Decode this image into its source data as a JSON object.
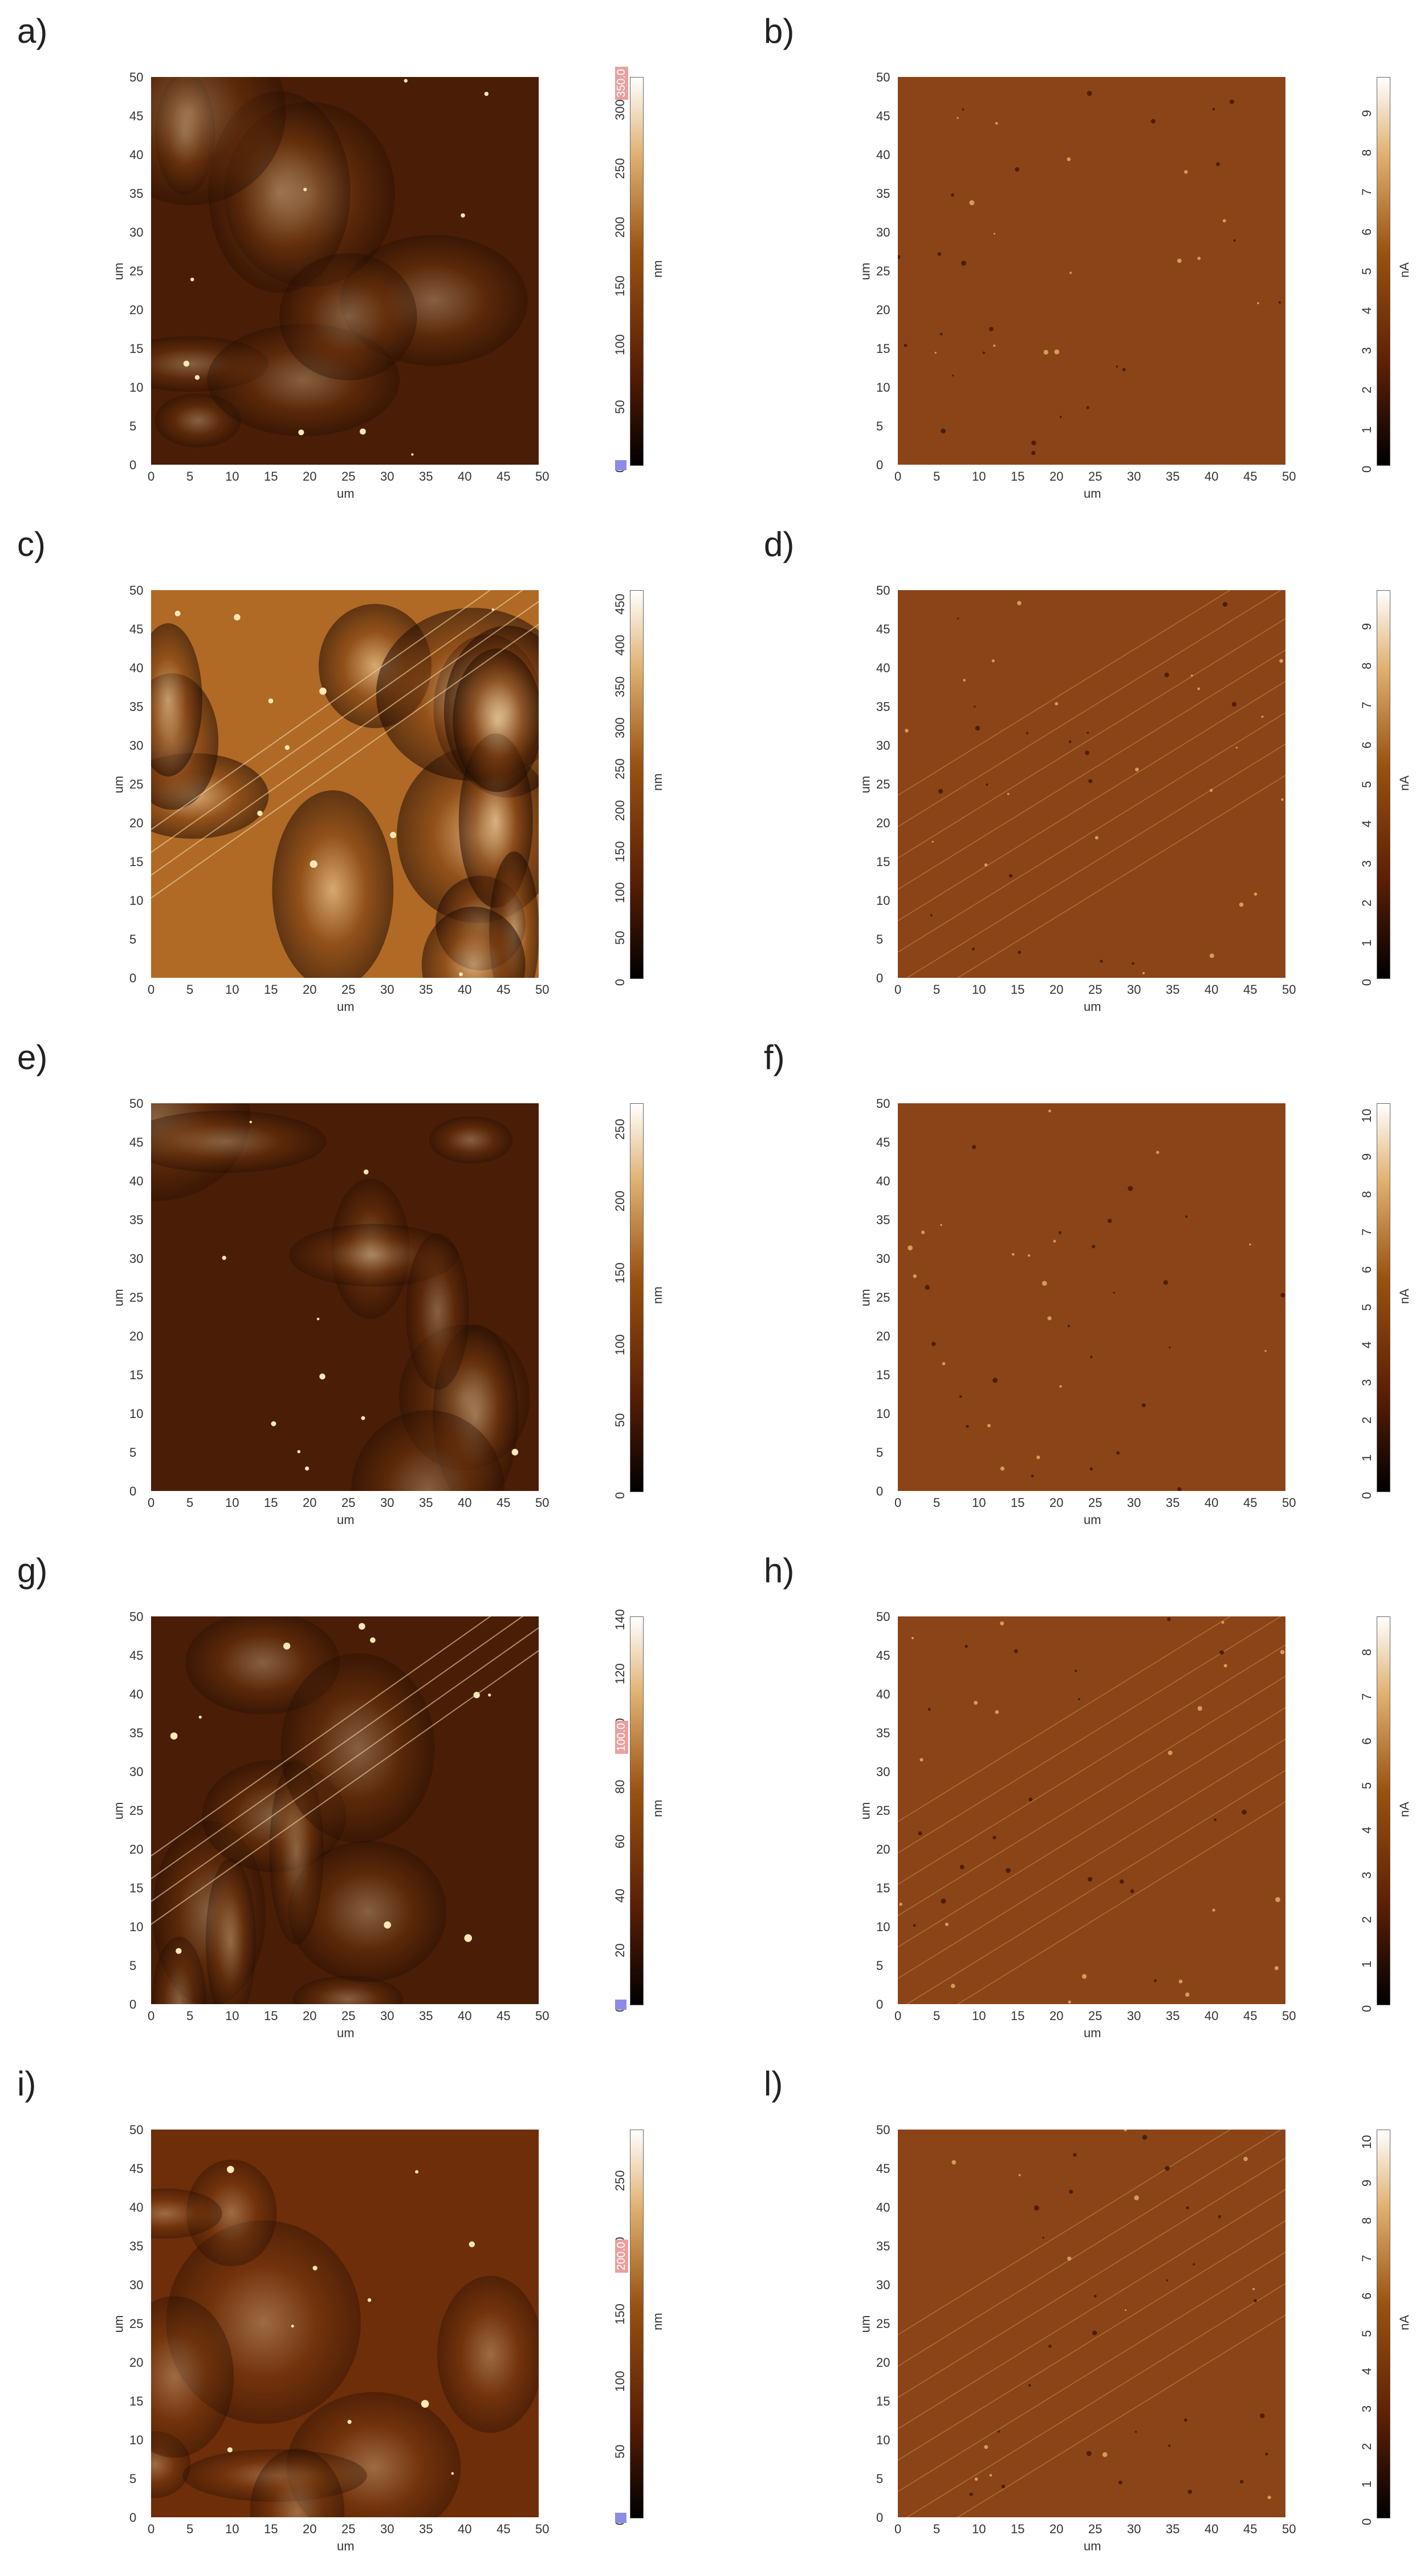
{
  "axis": {
    "ticks": [
      "0",
      "5",
      "10",
      "15",
      "20",
      "25",
      "30",
      "35",
      "40",
      "45",
      "50"
    ],
    "unit_label": "um"
  },
  "panels": [
    {
      "label": "a)",
      "kind": "height",
      "unit": "nm",
      "cbar_ticks": [
        "0",
        "50",
        "100",
        "150",
        "200",
        "250",
        "300"
      ],
      "cbar_max": 330,
      "cbar_hi_label": "350.0",
      "has_marker": true
    },
    {
      "label": "b)",
      "kind": "current",
      "unit": "nA",
      "cbar_ticks": [
        "0",
        "1",
        "2",
        "3",
        "4",
        "5",
        "6",
        "7",
        "8",
        "9"
      ],
      "cbar_max": 9.8,
      "has_marker": false
    },
    {
      "label": "c)",
      "kind": "height",
      "unit": "nm",
      "cbar_ticks": [
        "0",
        "50",
        "100",
        "150",
        "200",
        "250",
        "300",
        "350",
        "400",
        "450"
      ],
      "cbar_max": 470,
      "has_marker": false
    },
    {
      "label": "d)",
      "kind": "current",
      "unit": "nA",
      "cbar_ticks": [
        "0",
        "1",
        "2",
        "3",
        "4",
        "5",
        "6",
        "7",
        "8",
        "9"
      ],
      "cbar_max": 9.8,
      "has_marker": false
    },
    {
      "label": "e)",
      "kind": "height",
      "unit": "nm",
      "cbar_ticks": [
        "0",
        "50",
        "100",
        "150",
        "200",
        "250"
      ],
      "cbar_max": 270,
      "has_marker": false
    },
    {
      "label": "f)",
      "kind": "current",
      "unit": "nA",
      "cbar_ticks": [
        "0",
        "1",
        "2",
        "3",
        "4",
        "5",
        "6",
        "7",
        "8",
        "9",
        "10"
      ],
      "cbar_max": 10.3,
      "has_marker": false
    },
    {
      "label": "g)",
      "kind": "height",
      "unit": "nm",
      "cbar_ticks": [
        "0",
        "20",
        "40",
        "60",
        "80",
        "100",
        "120",
        "140"
      ],
      "cbar_max": 142,
      "cbar_hi_label": "100.0",
      "has_marker": true
    },
    {
      "label": "h)",
      "kind": "current",
      "unit": "nA",
      "cbar_ticks": [
        "0",
        "1",
        "2",
        "3",
        "4",
        "5",
        "6",
        "7",
        "8"
      ],
      "cbar_max": 8.7,
      "has_marker": false
    },
    {
      "label": "i)",
      "kind": "height",
      "unit": "nm",
      "cbar_ticks": [
        "0",
        "50",
        "100",
        "150",
        "200",
        "250"
      ],
      "cbar_max": 290,
      "cbar_hi_label": "200.0",
      "has_marker": true
    },
    {
      "label": "l)",
      "kind": "current",
      "unit": "nA",
      "cbar_ticks": [
        "0",
        "1",
        "2",
        "3",
        "4",
        "5",
        "6",
        "7",
        "8",
        "9",
        "10"
      ],
      "cbar_max": 10.3,
      "has_marker": false
    }
  ],
  "colors": {
    "height_dark": "#1e0a02",
    "height_mid": "#7a3c10",
    "height_bright": "#f6dcae",
    "current_base": "#8a4418"
  }
}
